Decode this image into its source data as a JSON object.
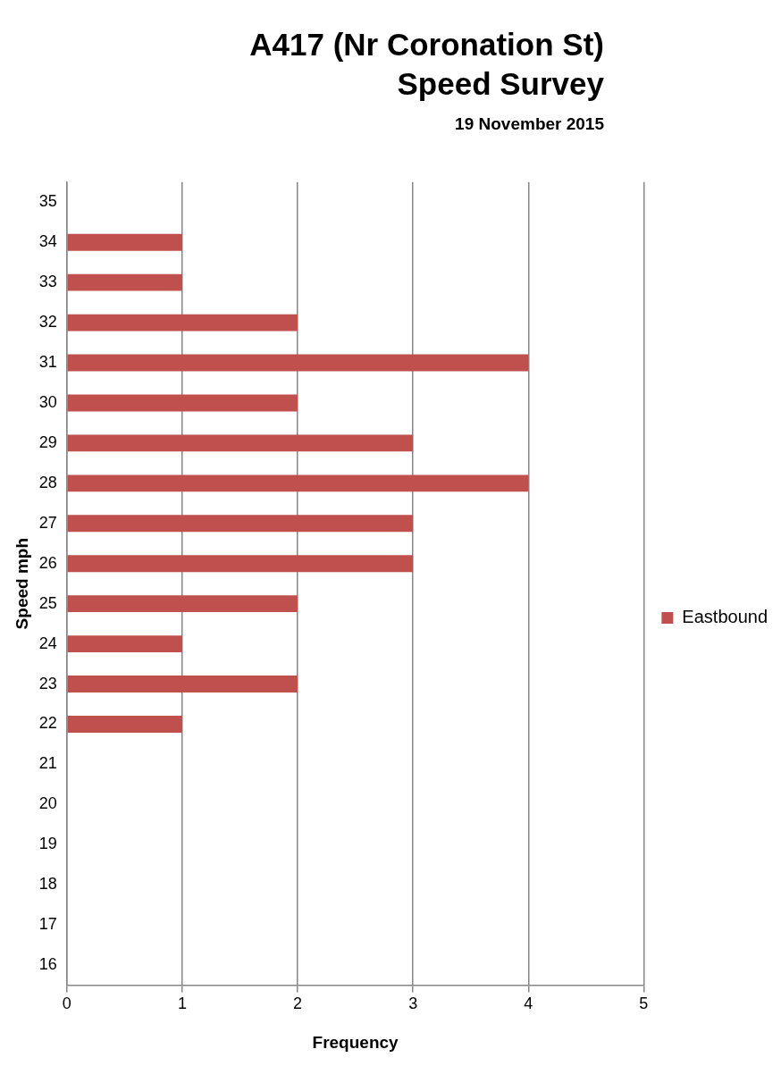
{
  "chart_data": {
    "type": "bar",
    "orientation": "horizontal",
    "title": "A417 (Nr Coronation St)\nSpeed Survey",
    "subtitle": "19 November 2015",
    "xlabel": "Frequency",
    "ylabel": "Speed mph",
    "categories": [
      "35",
      "34",
      "33",
      "32",
      "31",
      "30",
      "29",
      "28",
      "27",
      "26",
      "25",
      "24",
      "23",
      "22",
      "21",
      "20",
      "19",
      "18",
      "17",
      "16"
    ],
    "series": [
      {
        "name": "Eastbound",
        "color": "#c0504d",
        "values": [
          0,
          1,
          1,
          2,
          4,
          2,
          3,
          4,
          3,
          3,
          2,
          1,
          2,
          1,
          0,
          0,
          0,
          0,
          0,
          0
        ]
      }
    ],
    "xlim": [
      0,
      5
    ],
    "xticks": [
      0,
      1,
      2,
      3,
      4,
      5
    ],
    "grid": "x",
    "legend": "right"
  }
}
